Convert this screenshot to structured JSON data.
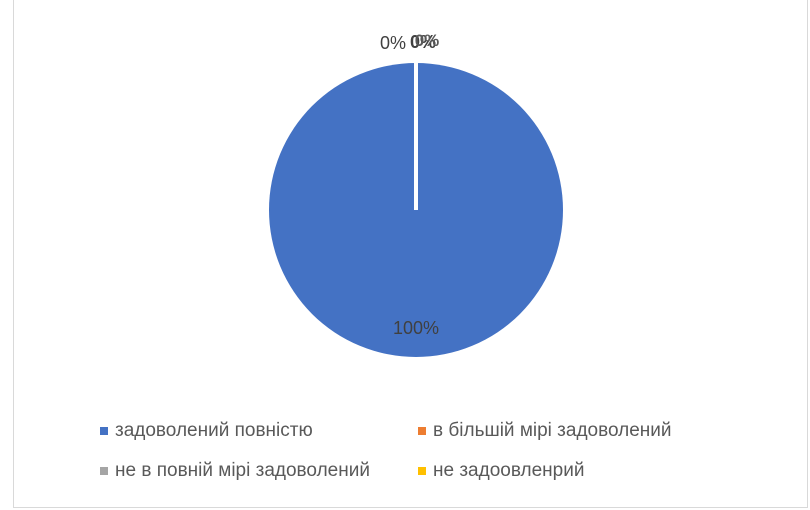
{
  "chart_data": {
    "type": "pie",
    "title": "",
    "categories": [
      "задоволений повністю",
      "в більшій мірі задоволений",
      "не в повній мірі задоволений",
      "не задоовленрий"
    ],
    "values": [
      100,
      0,
      0,
      0
    ],
    "data_labels": [
      "100%",
      "0%",
      "0%",
      "0%"
    ],
    "colors": [
      "#4472C4",
      "#ED7D31",
      "#A5A5A5",
      "#FFC000"
    ],
    "legend_position": "bottom"
  }
}
